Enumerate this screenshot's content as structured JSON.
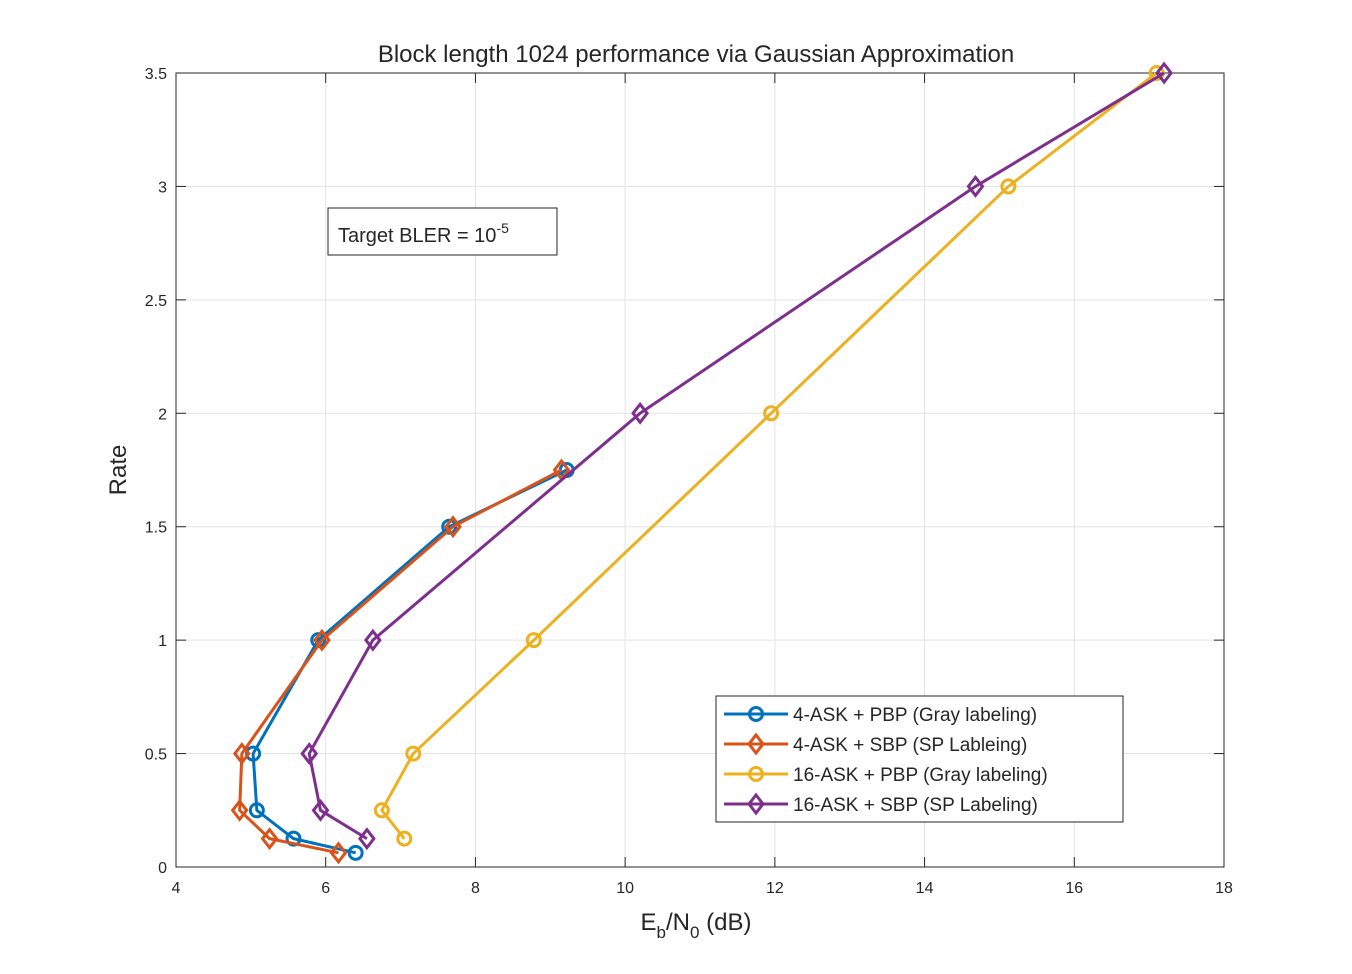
{
  "chart_data": {
    "type": "line",
    "title": "Block length 1024 performance via Gaussian Approximation",
    "xlabel": {
      "main": "E",
      "sub1": "b",
      "mid": "/N",
      "sub2": "0",
      "tail": " (dB)"
    },
    "ylabel": "Rate",
    "xlim": [
      4,
      18
    ],
    "ylim": [
      0,
      3.5
    ],
    "xticks": [
      4,
      6,
      8,
      10,
      12,
      14,
      16,
      18
    ],
    "yticks": [
      0,
      0.5,
      1,
      1.5,
      2,
      2.5,
      3,
      3.5
    ],
    "xtick_labels": [
      "4",
      "6",
      "8",
      "10",
      "12",
      "14",
      "16",
      "18"
    ],
    "ytick_labels": [
      "0",
      "0.5",
      "1",
      "1.5",
      "2",
      "2.5",
      "3",
      "3.5"
    ],
    "grid": true,
    "legend_position": "bottom-right",
    "annotation": {
      "text": "Target BLER = 10",
      "sup": "-5"
    },
    "series": [
      {
        "name": "4-ASK + PBP (Gray labeling)",
        "color": "#0072BD",
        "marker": "circle",
        "x": [
          9.22,
          7.65,
          5.9,
          5.03,
          5.08,
          5.57,
          6.4
        ],
        "y": [
          1.75,
          1.5,
          1.0,
          0.5,
          0.25,
          0.125,
          0.0625
        ]
      },
      {
        "name": "4-ASK + SBP (SP Lableing)",
        "color": "#D95319",
        "marker": "diamond",
        "x": [
          9.15,
          7.7,
          5.95,
          4.88,
          4.85,
          5.25,
          6.17
        ],
        "y": [
          1.75,
          1.5,
          1.0,
          0.5,
          0.25,
          0.125,
          0.0625
        ]
      },
      {
        "name": "16-ASK + PBP (Gray labeling)",
        "color": "#EDB120",
        "marker": "circle",
        "x": [
          17.1,
          15.12,
          11.95,
          8.78,
          7.17,
          6.75,
          7.05
        ],
        "y": [
          3.5,
          3.0,
          2.0,
          1.0,
          0.5,
          0.25,
          0.125
        ]
      },
      {
        "name": "16-ASK + SBP (SP Labeling)",
        "color": "#7E2F8E",
        "marker": "diamond",
        "x": [
          17.2,
          14.68,
          10.2,
          6.63,
          5.78,
          5.93,
          6.55
        ],
        "y": [
          3.5,
          3.0,
          2.0,
          1.0,
          0.5,
          0.25,
          0.125
        ]
      }
    ]
  }
}
